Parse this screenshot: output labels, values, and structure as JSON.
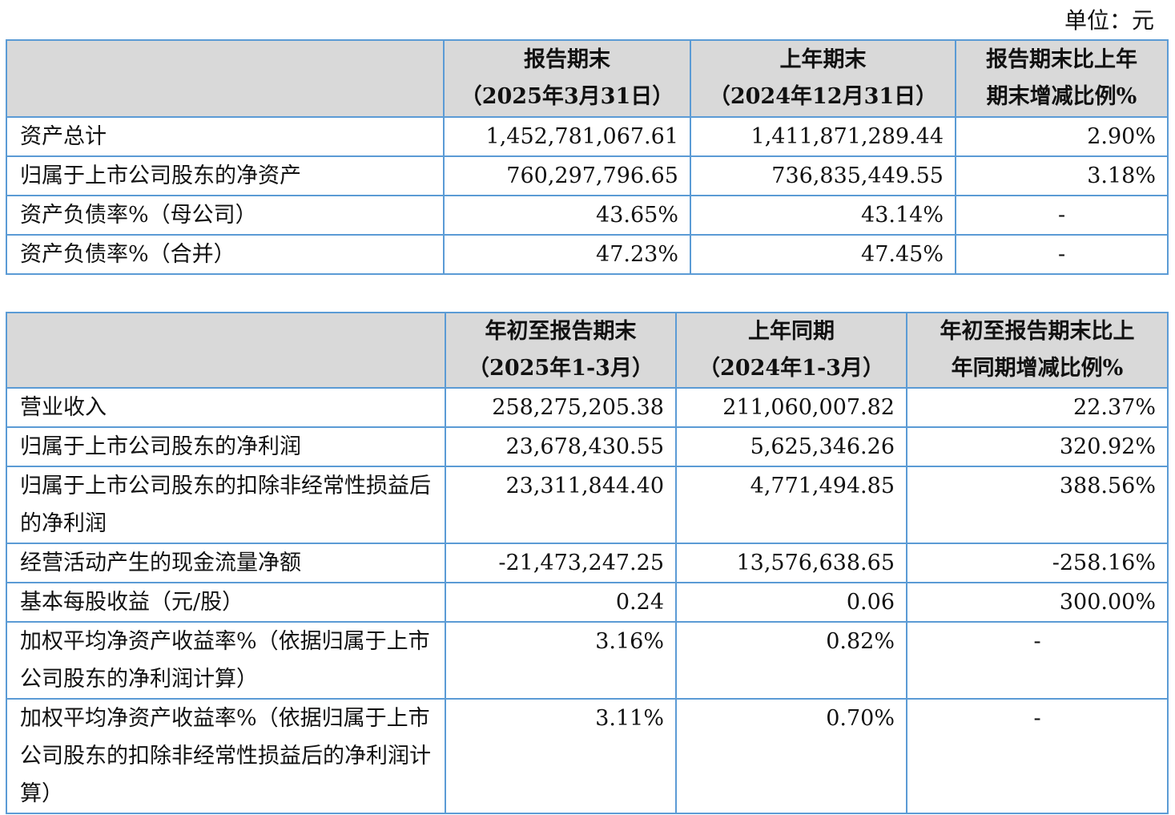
{
  "unit_label": "单位：元",
  "balance_table": {
    "headers": [
      {
        "line1": "报告期末",
        "line2": "（2025年3月31日）"
      },
      {
        "line1": "上年期末",
        "line2": "（2024年12月31日）"
      },
      {
        "line1": "报告期末比上年",
        "line2": "期末增减比例%"
      }
    ],
    "rows": [
      {
        "label": "资产总计",
        "current": "1,452,781,067.61",
        "prior": "1,411,871,289.44",
        "change": "2.90%"
      },
      {
        "label": "归属于上市公司股东的净资产",
        "current": "760,297,796.65",
        "prior": "736,835,449.55",
        "change": "3.18%"
      },
      {
        "label": "资产负债率%（母公司）",
        "current": "43.65%",
        "prior": "43.14%",
        "change": "-"
      },
      {
        "label": "资产负债率%（合并）",
        "current": "47.23%",
        "prior": "47.45%",
        "change": "-"
      }
    ]
  },
  "income_table": {
    "headers": [
      {
        "line1": "年初至报告期末",
        "line2": "（2025年1-3月）"
      },
      {
        "line1": "上年同期",
        "line2": "（2024年1-3月）"
      },
      {
        "line1": "年初至报告期末比上",
        "line2": "年同期增减比例%"
      }
    ],
    "rows": [
      {
        "label": "营业收入",
        "current": "258,275,205.38",
        "prior": "211,060,007.82",
        "change": "22.37%"
      },
      {
        "label": "归属于上市公司股东的净利润",
        "current": "23,678,430.55",
        "prior": "5,625,346.26",
        "change": "320.92%"
      },
      {
        "label": "归属于上市公司股东的扣除非经常性损益后的净利润",
        "current": "23,311,844.40",
        "prior": "4,771,494.85",
        "change": "388.56%"
      },
      {
        "label": "经营活动产生的现金流量净额",
        "current": "-21,473,247.25",
        "prior": "13,576,638.65",
        "change": "-258.16%"
      },
      {
        "label": "基本每股收益（元/股）",
        "current": "0.24",
        "prior": "0.06",
        "change": "300.00%"
      },
      {
        "label": "加权平均净资产收益率%（依据归属于上市公司股东的净利润计算）",
        "current": "3.16%",
        "prior": "0.82%",
        "change": "-"
      },
      {
        "label": "加权平均净资产收益率%（依据归属于上市公司股东的扣除非经常性损益后的净利润计算）",
        "current": "3.11%",
        "prior": "0.70%",
        "change": "-"
      }
    ]
  }
}
